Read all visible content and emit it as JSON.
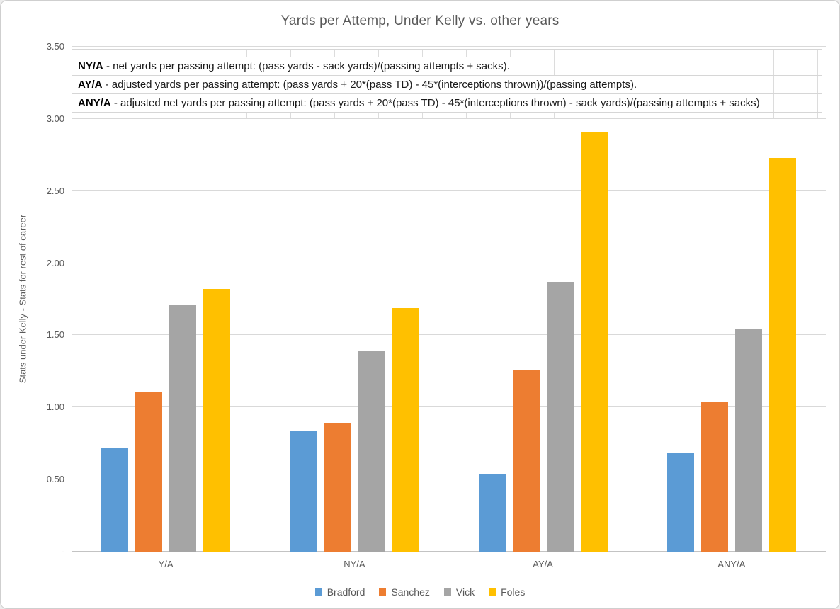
{
  "chart_data": {
    "type": "bar",
    "title": "Yards per Attemp, Under Kelly vs. other years",
    "ylabel": "Stats under Kelly - Stats for rest of career",
    "xlabel": "",
    "categories": [
      "Y/A",
      "NY/A",
      "AY/A",
      "ANY/A"
    ],
    "series": [
      {
        "name": "Bradford",
        "color": "#5B9BD5",
        "values": [
          0.72,
          0.84,
          0.54,
          0.68
        ]
      },
      {
        "name": "Sanchez",
        "color": "#ED7D31",
        "values": [
          1.11,
          0.89,
          1.26,
          1.04
        ]
      },
      {
        "name": "Vick",
        "color": "#A5A5A5",
        "values": [
          1.71,
          1.39,
          1.87,
          1.54
        ]
      },
      {
        "name": "Foles",
        "color": "#FFC000",
        "values": [
          1.82,
          1.69,
          2.91,
          2.73
        ]
      }
    ],
    "ylim": [
      0,
      3.5
    ],
    "ytick_step": 0.5,
    "ytick_labels": [
      "-",
      "0.50",
      "1.00",
      "1.50",
      "2.00",
      "2.50",
      "3.00",
      "3.50"
    ],
    "grid": true,
    "legend_position": "bottom"
  },
  "annotations": {
    "definitions": [
      {
        "term": "NY/A",
        "text": " - net yards per passing attempt: (pass yards - sack yards)/(passing attempts + sacks)."
      },
      {
        "term": "AY/A",
        "text": " - adjusted yards per passing attempt: (pass yards + 20*(pass TD) - 45*(interceptions thrown))/(passing attempts)."
      },
      {
        "term": "ANY/A",
        "text": " - adjusted net yards per passing attempt: (pass yards + 20*(pass TD) - 45*(interceptions thrown) - sack yards)/(passing attempts + sacks)"
      }
    ]
  },
  "colors": {
    "text": "#595959",
    "gridline": "#d9d9d9",
    "axis_line": "#c3c3c3",
    "frame_border": "#cfcfcf"
  }
}
